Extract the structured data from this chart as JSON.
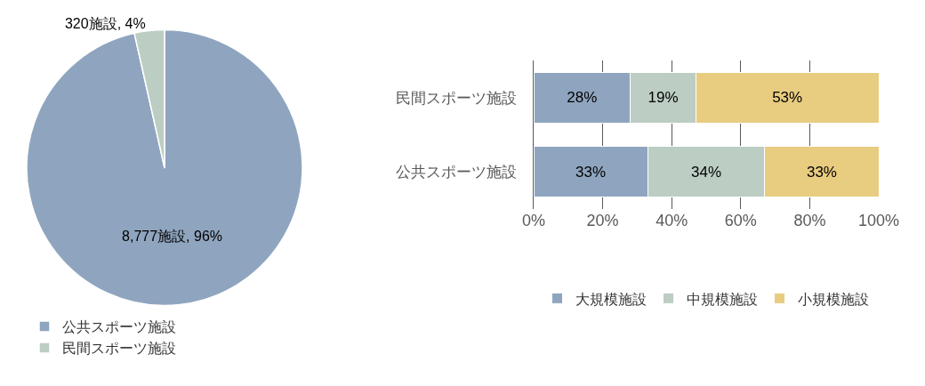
{
  "chart_data": [
    {
      "type": "pie",
      "categories": [
        "公共スポーツ施設",
        "民間スポーツ施設"
      ],
      "values": [
        8777,
        320
      ],
      "colors": [
        "#8fa5bf",
        "#bccdc3"
      ],
      "value_labels": [
        "8,777施設, 96%",
        "320施設, 4%"
      ],
      "legend": "bottom left"
    },
    {
      "type": "bar",
      "orientation": "horizontal",
      "stacked": true,
      "categories": [
        "民間スポーツ施設",
        "公共スポーツ施設"
      ],
      "series": [
        {
          "name": "大規模施設",
          "color": "#8fa5bf",
          "values": [
            28,
            33
          ],
          "value_labels": [
            "28%",
            "33%"
          ]
        },
        {
          "name": "中規模施設",
          "color": "#bccdc3",
          "values": [
            19,
            34
          ],
          "value_labels": [
            "19%",
            "34%"
          ]
        },
        {
          "name": "小規模施設",
          "color": "#e8cc80",
          "values": [
            53,
            33
          ],
          "value_labels": [
            "53%",
            "33%"
          ]
        }
      ],
      "xlim": [
        0,
        100
      ],
      "xticks": [
        {
          "value": 0,
          "label": "0%"
        },
        {
          "value": 20,
          "label": "20%"
        },
        {
          "value": 40,
          "label": "40%"
        },
        {
          "value": 60,
          "label": "60%"
        },
        {
          "value": 80,
          "label": "80%"
        },
        {
          "value": 100,
          "label": "100%"
        }
      ],
      "grid": "x",
      "legend": "bottom"
    }
  ]
}
